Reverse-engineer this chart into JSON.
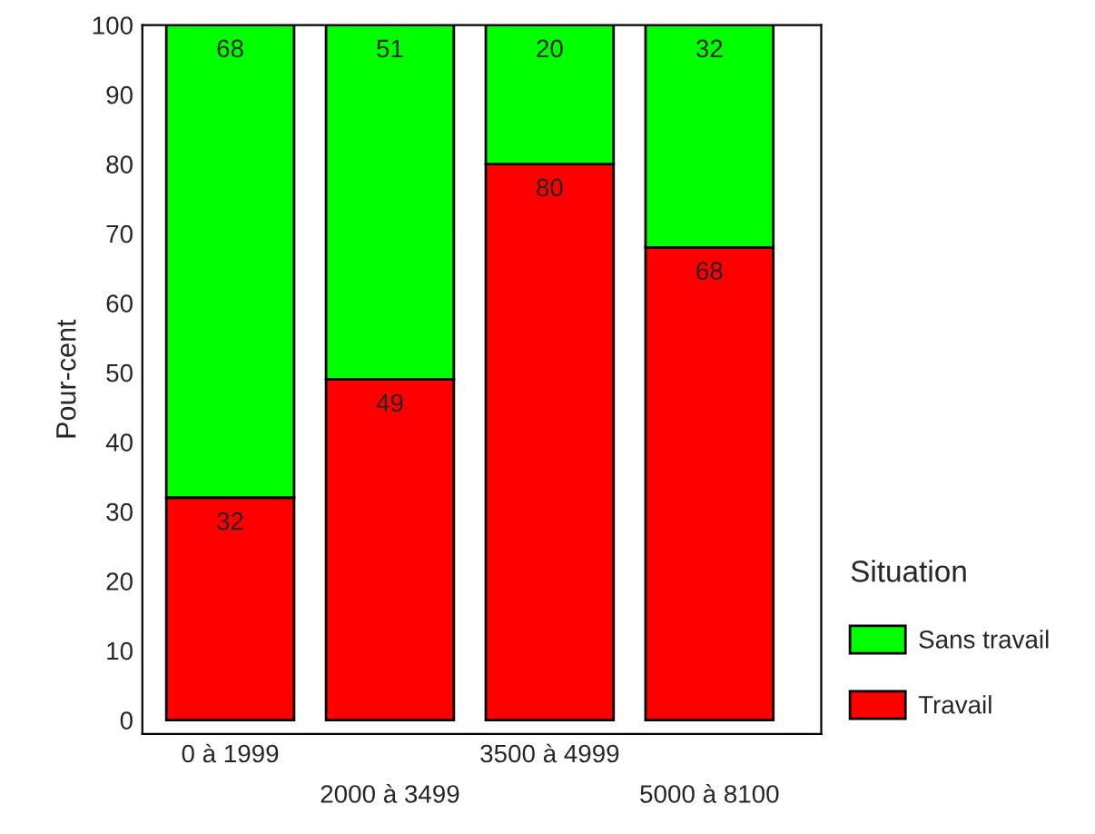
{
  "chart_data": {
    "type": "bar",
    "stacked": true,
    "ylabel": "Pour-cent",
    "legend_title": "Situation",
    "categories": [
      "0 à 1999",
      "2000 à 3499",
      "3500 à 4999",
      "5000 à 8100"
    ],
    "series": [
      {
        "name": "Travail",
        "color": "#ff0000",
        "values": [
          32,
          49,
          80,
          68
        ]
      },
      {
        "name": "Sans travail",
        "color": "#00ff00",
        "values": [
          68,
          51,
          20,
          32
        ]
      }
    ],
    "ylim": [
      -2,
      100
    ],
    "yticks": [
      0,
      10,
      20,
      30,
      40,
      50,
      60,
      70,
      80,
      90,
      100
    ],
    "data_labels": true,
    "legend": "right",
    "grid": false
  }
}
